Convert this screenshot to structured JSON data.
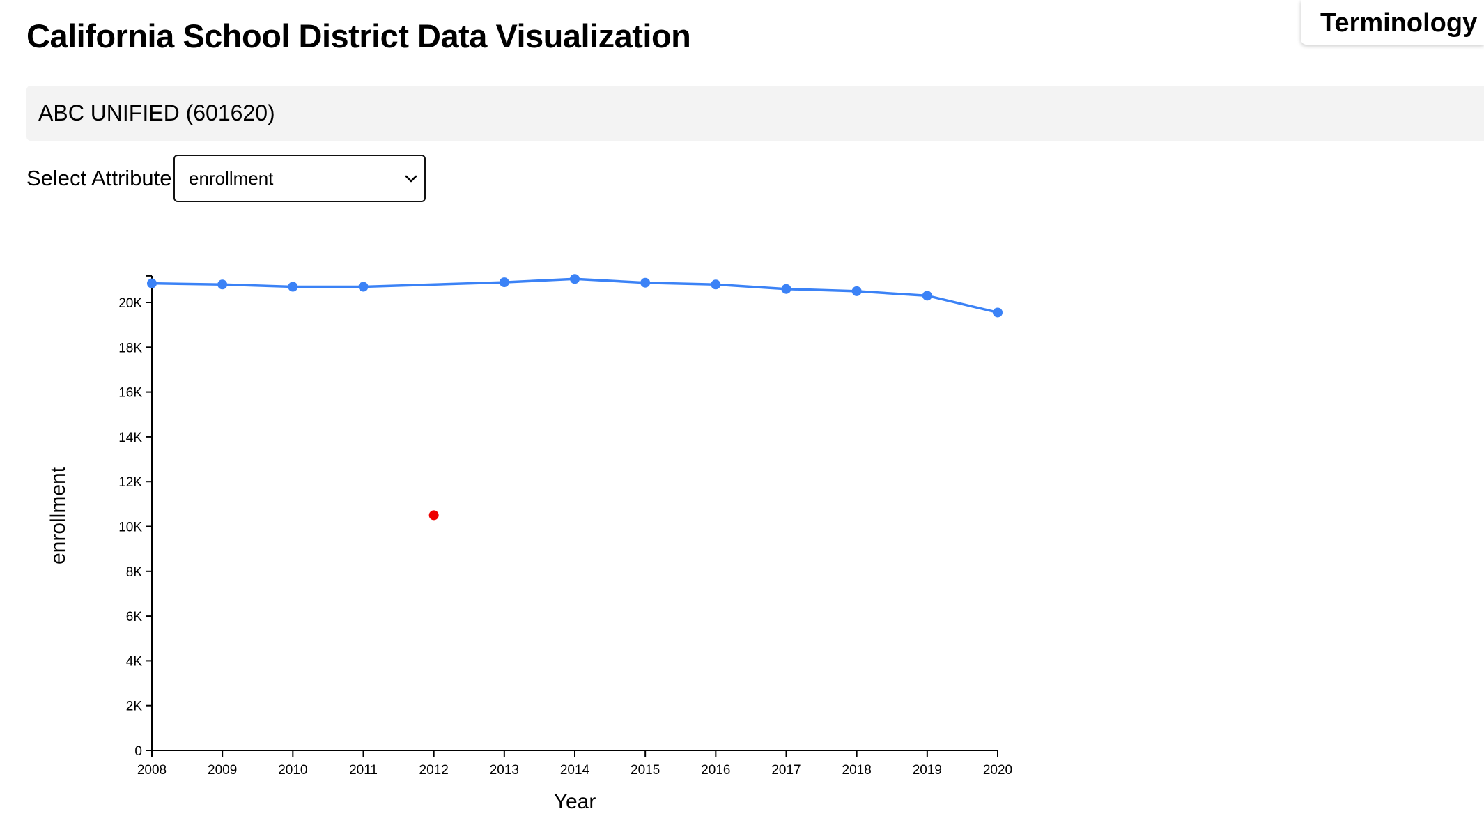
{
  "page": {
    "title": "California School District Data Visualization",
    "terminology_label": "Terminology"
  },
  "district": {
    "label": "ABC UNIFIED (601620)"
  },
  "attribute_selector": {
    "label": "Select Attribute:",
    "selected_value": "enrollment"
  },
  "colors": {
    "line": "#3b82f6",
    "highlight": "#ee0000",
    "district_bar": "#f3f3f3"
  },
  "icons": {
    "select_arrow": "chevron-down-icon"
  },
  "chart_data": {
    "type": "line",
    "xlabel": "Year",
    "ylabel": "enrollment",
    "ylim": [
      0,
      21000
    ],
    "x_ticks": [
      "2008",
      "2009",
      "2010",
      "2011",
      "2012",
      "2013",
      "2014",
      "2015",
      "2016",
      "2017",
      "2018",
      "2019",
      "2020"
    ],
    "y_ticks": [
      {
        "value": 0,
        "label": "0"
      },
      {
        "value": 2000,
        "label": "2K"
      },
      {
        "value": 4000,
        "label": "4K"
      },
      {
        "value": 6000,
        "label": "6K"
      },
      {
        "value": 8000,
        "label": "8K"
      },
      {
        "value": 10000,
        "label": "10K"
      },
      {
        "value": 12000,
        "label": "12K"
      },
      {
        "value": 14000,
        "label": "14K"
      },
      {
        "value": 16000,
        "label": "16K"
      },
      {
        "value": 18000,
        "label": "18K"
      },
      {
        "value": 20000,
        "label": "20K"
      }
    ],
    "series": [
      {
        "x": [
          2008,
          2009,
          2010,
          2011,
          2013,
          2014,
          2015,
          2016,
          2017,
          2018,
          2019,
          2020
        ],
        "y": [
          20850,
          20800,
          20700,
          20700,
          20900,
          21050,
          20880,
          20800,
          20600,
          20500,
          20300,
          19550
        ]
      }
    ],
    "highlight_points": [
      {
        "x": 2012,
        "y": 10500
      }
    ],
    "grid": false,
    "legend": "none"
  }
}
